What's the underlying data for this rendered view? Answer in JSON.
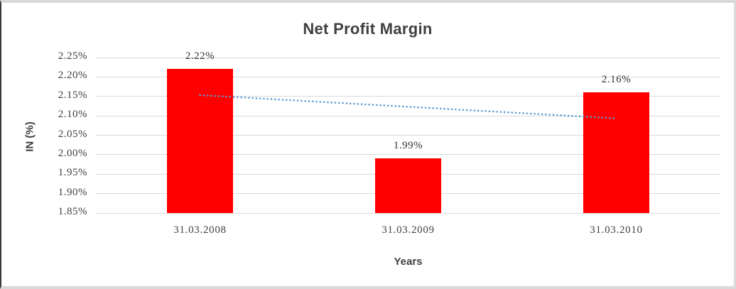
{
  "chart_data": {
    "type": "bar",
    "title": "Net Profit Margin",
    "xlabel": "Years",
    "ylabel": "IN (%)",
    "categories": [
      "31.03.2008",
      "31.03.2009",
      "31.03.2010"
    ],
    "series": [
      {
        "name": "Net Profit Margin",
        "values": [
          2.22,
          1.99,
          2.16
        ]
      }
    ],
    "data_labels": [
      "2.22%",
      "1.99%",
      "2.16%"
    ],
    "y_ticks": [
      "2.25%",
      "2.20%",
      "2.15%",
      "2.10%",
      "2.05%",
      "2.00%",
      "1.95%",
      "1.90%",
      "1.85%"
    ],
    "ylim": [
      1.85,
      2.25
    ],
    "y_tick_step": 0.05,
    "grid": true,
    "legend": "none",
    "bar_color": "#ff0000",
    "gridline_color": "#d9d9d9",
    "text_color": "#404040",
    "trendline": {
      "type": "linear",
      "style": "dotted",
      "color": "#5b9bd5",
      "start_value": 2.1533,
      "end_value": 2.0933
    }
  }
}
